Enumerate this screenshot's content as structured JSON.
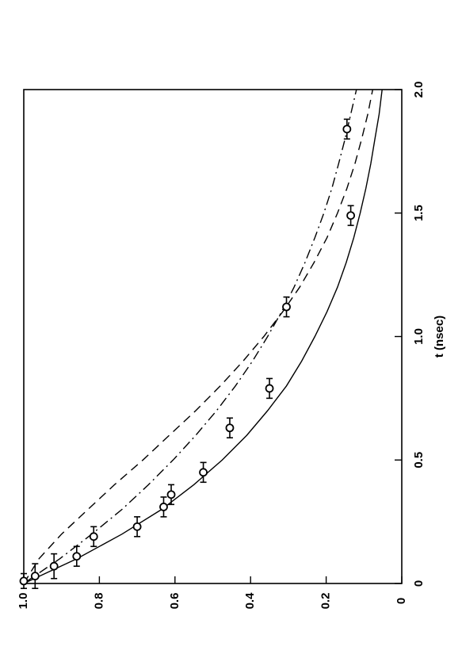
{
  "chart_data": {
    "type": "scatter",
    "orientation": "rotated 90 degrees counter-clockwise",
    "xlabel": "t (nsec)",
    "ylabel": "",
    "xlim": [
      0,
      2.0
    ],
    "ylim": [
      0,
      1.0
    ],
    "x_ticks": [
      {
        "value": 0,
        "label": "0"
      },
      {
        "value": 0.5,
        "label": "0.5"
      },
      {
        "value": 1.0,
        "label": "1.0"
      },
      {
        "value": 1.5,
        "label": "1.5"
      },
      {
        "value": 2.0,
        "label": "2.0"
      }
    ],
    "y_ticks": [
      {
        "value": 0,
        "label": "0"
      },
      {
        "value": 0.2,
        "label": "0.2"
      },
      {
        "value": 0.4,
        "label": "0.4"
      },
      {
        "value": 0.6,
        "label": "0.6"
      },
      {
        "value": 0.8,
        "label": "0.8"
      },
      {
        "value": 1.0,
        "label": "1.0"
      }
    ],
    "grid": false,
    "series": [
      {
        "kind": "points-with-x-error",
        "marker": "open-circle",
        "points": [
          {
            "x": 0.01,
            "y": 1.0,
            "xerr": 0.03
          },
          {
            "x": 0.03,
            "y": 0.97,
            "xerr": 0.05
          },
          {
            "x": 0.07,
            "y": 0.92,
            "xerr": 0.05
          },
          {
            "x": 0.11,
            "y": 0.86,
            "xerr": 0.04
          },
          {
            "x": 0.19,
            "y": 0.815,
            "xerr": 0.04
          },
          {
            "x": 0.23,
            "y": 0.7,
            "xerr": 0.04
          },
          {
            "x": 0.31,
            "y": 0.63,
            "xerr": 0.04
          },
          {
            "x": 0.36,
            "y": 0.61,
            "xerr": 0.04
          },
          {
            "x": 0.45,
            "y": 0.525,
            "xerr": 0.04
          },
          {
            "x": 0.63,
            "y": 0.455,
            "xerr": 0.04
          },
          {
            "x": 0.79,
            "y": 0.35,
            "xerr": 0.04
          },
          {
            "x": 1.12,
            "y": 0.305,
            "xerr": 0.04
          },
          {
            "x": 1.49,
            "y": 0.135,
            "xerr": 0.04
          },
          {
            "x": 1.84,
            "y": 0.145,
            "xerr": 0.04
          }
        ]
      },
      {
        "kind": "curve",
        "line_style": "solid",
        "x": [
          0,
          0.1,
          0.2,
          0.3,
          0.4,
          0.5,
          0.6,
          0.7,
          0.8,
          0.9,
          1.0,
          1.1,
          1.2,
          1.3,
          1.4,
          1.5,
          1.6,
          1.7,
          1.8,
          1.9,
          2.0
        ],
        "y": [
          1.0,
          0.86,
          0.74,
          0.635,
          0.55,
          0.475,
          0.41,
          0.355,
          0.305,
          0.265,
          0.23,
          0.198,
          0.17,
          0.147,
          0.127,
          0.11,
          0.095,
          0.082,
          0.071,
          0.06,
          0.052
        ]
      },
      {
        "kind": "curve",
        "line_style": "dash-dot",
        "x": [
          0,
          0.1,
          0.2,
          0.3,
          0.4,
          0.5,
          0.6,
          0.7,
          0.8,
          0.9,
          1.0,
          1.1,
          1.2,
          1.3,
          1.4,
          1.5,
          1.6,
          1.7,
          1.8,
          1.9,
          2.0
        ],
        "y": [
          1.0,
          0.905,
          0.82,
          0.74,
          0.67,
          0.605,
          0.545,
          0.49,
          0.44,
          0.395,
          0.355,
          0.318,
          0.285,
          0.256,
          0.23,
          0.206,
          0.185,
          0.167,
          0.15,
          0.135,
          0.12
        ]
      },
      {
        "kind": "curve",
        "line_style": "dashed",
        "x": [
          0,
          0.1,
          0.2,
          0.3,
          0.4,
          0.5,
          0.6,
          0.7,
          0.8,
          0.9,
          1.0,
          1.1,
          1.2,
          1.3,
          1.4,
          1.5,
          1.6,
          1.7,
          1.8,
          1.9,
          2.0
        ],
        "y": [
          1.0,
          0.96,
          0.9,
          0.83,
          0.76,
          0.685,
          0.615,
          0.545,
          0.48,
          0.42,
          0.365,
          0.315,
          0.27,
          0.232,
          0.198,
          0.17,
          0.145,
          0.124,
          0.106,
          0.09,
          0.077
        ]
      }
    ]
  }
}
